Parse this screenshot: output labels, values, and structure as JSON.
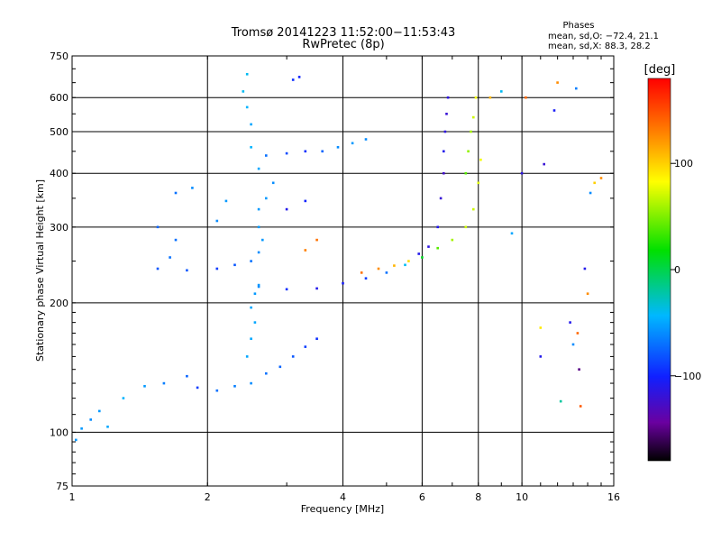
{
  "chart_data": {
    "type": "scatter",
    "title": "Tromsø 20141223 11:52:00−11:53:43",
    "subtitle": "RwPretec (8p)",
    "xlabel": "Frequency [MHz]",
    "ylabel": "Stationary phase Virtual Height [km]",
    "x_scale": "log",
    "y_scale": "log",
    "xlim": [
      1,
      16
    ],
    "ylim": [
      75,
      750
    ],
    "x_ticks": [
      1,
      2,
      4,
      6,
      8,
      10,
      16
    ],
    "x_tick_labels": [
      "1",
      "2",
      "4",
      "6",
      "8",
      "10",
      "16"
    ],
    "y_ticks": [
      75,
      100,
      200,
      300,
      400,
      500,
      600,
      750
    ],
    "y_tick_labels": [
      "75",
      "100",
      "200",
      "300",
      "400",
      "500",
      "600",
      "750"
    ],
    "grid": true,
    "phases_info": {
      "heading": "Phases",
      "line1": "mean, sd,O: −72.4, 21.1",
      "line2": "mean, sd,X:  88.3, 28.2"
    },
    "colorbar": {
      "label": "[deg]",
      "min": -180,
      "max": 180,
      "ticks": [
        100,
        0,
        -100
      ],
      "tick_labels": [
        "100",
        "0",
        "−100"
      ],
      "colormap": "rainbow (black→purple→blue→cyan→green→yellow→red)"
    },
    "series": [
      {
        "points": [
          [
            1.1,
            107,
            -60
          ],
          [
            1.15,
            112,
            -55
          ],
          [
            1.2,
            103,
            -50
          ],
          [
            1.3,
            120,
            -45
          ],
          [
            1.45,
            128,
            -55
          ],
          [
            1.6,
            130,
            -65
          ],
          [
            1.8,
            135,
            -75
          ],
          [
            1.9,
            127,
            -90
          ],
          [
            2.1,
            125,
            -70
          ],
          [
            2.3,
            128,
            -65
          ],
          [
            2.5,
            130,
            -60
          ],
          [
            2.7,
            137,
            -70
          ],
          [
            2.9,
            142,
            -75
          ],
          [
            3.1,
            150,
            -80
          ],
          [
            3.3,
            158,
            -90
          ],
          [
            3.5,
            165,
            -95
          ],
          [
            1.05,
            102,
            -55
          ],
          [
            1.02,
            96,
            -55
          ],
          [
            2.45,
            150,
            -50
          ],
          [
            2.5,
            165,
            -50
          ],
          [
            2.55,
            180,
            -50
          ],
          [
            2.5,
            195,
            -50
          ],
          [
            2.55,
            210,
            -55
          ],
          [
            2.6,
            220,
            -55
          ],
          [
            1.55,
            240,
            -80
          ],
          [
            1.8,
            238,
            -80
          ],
          [
            2.1,
            240,
            -90
          ],
          [
            2.3,
            245,
            -80
          ],
          [
            2.5,
            250,
            -70
          ],
          [
            2.6,
            262,
            -60
          ],
          [
            2.65,
            280,
            -55
          ],
          [
            2.6,
            300,
            -55
          ],
          [
            1.65,
            255,
            -70
          ],
          [
            1.7,
            280,
            -70
          ],
          [
            1.55,
            300,
            -75
          ],
          [
            2.6,
            218,
            -60
          ],
          [
            3.0,
            215,
            -95
          ],
          [
            3.5,
            216,
            -110
          ],
          [
            4.0,
            222,
            -105
          ],
          [
            4.5,
            228,
            -90
          ],
          [
            5.0,
            235,
            -70
          ],
          [
            5.5,
            245,
            -40
          ],
          [
            6.0,
            255,
            10
          ],
          [
            6.5,
            268,
            40
          ],
          [
            7.0,
            280,
            60
          ],
          [
            7.5,
            300,
            70
          ],
          [
            7.8,
            330,
            70
          ],
          [
            8.0,
            380,
            75
          ],
          [
            8.1,
            430,
            80
          ],
          [
            4.4,
            235,
            135
          ],
          [
            4.8,
            240,
            125
          ],
          [
            5.2,
            244,
            110
          ],
          [
            5.6,
            250,
            95
          ],
          [
            3.3,
            265,
            130
          ],
          [
            3.5,
            280,
            135
          ],
          [
            5.9,
            260,
            -110
          ],
          [
            6.2,
            270,
            -115
          ],
          [
            6.5,
            300,
            -110
          ],
          [
            6.6,
            350,
            -120
          ],
          [
            6.7,
            400,
            -125
          ],
          [
            6.7,
            450,
            -110
          ],
          [
            6.75,
            500,
            -115
          ],
          [
            6.8,
            550,
            -120
          ],
          [
            6.85,
            600,
            -115
          ],
          [
            7.5,
            400,
            40
          ],
          [
            7.6,
            450,
            55
          ],
          [
            7.7,
            500,
            60
          ],
          [
            7.8,
            540,
            70
          ],
          [
            7.9,
            600,
            80
          ],
          [
            2.6,
            330,
            -55
          ],
          [
            2.7,
            350,
            -55
          ],
          [
            2.8,
            380,
            -60
          ],
          [
            2.6,
            410,
            -50
          ],
          [
            2.5,
            460,
            -45
          ],
          [
            2.5,
            520,
            -50
          ],
          [
            2.45,
            570,
            -45
          ],
          [
            2.4,
            620,
            -40
          ],
          [
            2.45,
            680,
            -40
          ],
          [
            2.1,
            310,
            -60
          ],
          [
            2.2,
            345,
            -55
          ],
          [
            2.7,
            440,
            -70
          ],
          [
            3.0,
            445,
            -85
          ],
          [
            3.3,
            450,
            -95
          ],
          [
            3.6,
            450,
            -75
          ],
          [
            3.9,
            460,
            -60
          ],
          [
            4.2,
            470,
            -55
          ],
          [
            4.5,
            480,
            -60
          ],
          [
            3.1,
            660,
            -95
          ],
          [
            3.2,
            670,
            -100
          ],
          [
            3.0,
            330,
            -110
          ],
          [
            3.3,
            345,
            -100
          ],
          [
            1.7,
            360,
            -70
          ],
          [
            1.85,
            370,
            -60
          ],
          [
            10.0,
            400,
            -115
          ],
          [
            10.2,
            600,
            140
          ],
          [
            11.8,
            560,
            -105
          ],
          [
            12.0,
            650,
            125
          ],
          [
            13.2,
            630,
            -65
          ],
          [
            13.4,
            140,
            -150
          ],
          [
            13.5,
            115,
            145
          ],
          [
            13.8,
            240,
            -110
          ],
          [
            14.0,
            210,
            125
          ],
          [
            14.5,
            380,
            100
          ],
          [
            11.2,
            420,
            -120
          ],
          [
            11.0,
            150,
            -110
          ],
          [
            11.0,
            175,
            90
          ],
          [
            13.0,
            160,
            -60
          ],
          [
            13.3,
            170,
            140
          ],
          [
            12.2,
            118,
            -20
          ],
          [
            12.8,
            180,
            -110
          ],
          [
            14.2,
            360,
            -60
          ],
          [
            15.0,
            390,
            125
          ],
          [
            8.5,
            600,
            110
          ],
          [
            9.0,
            620,
            -40
          ],
          [
            9.5,
            290,
            -50
          ]
        ]
      }
    ]
  }
}
